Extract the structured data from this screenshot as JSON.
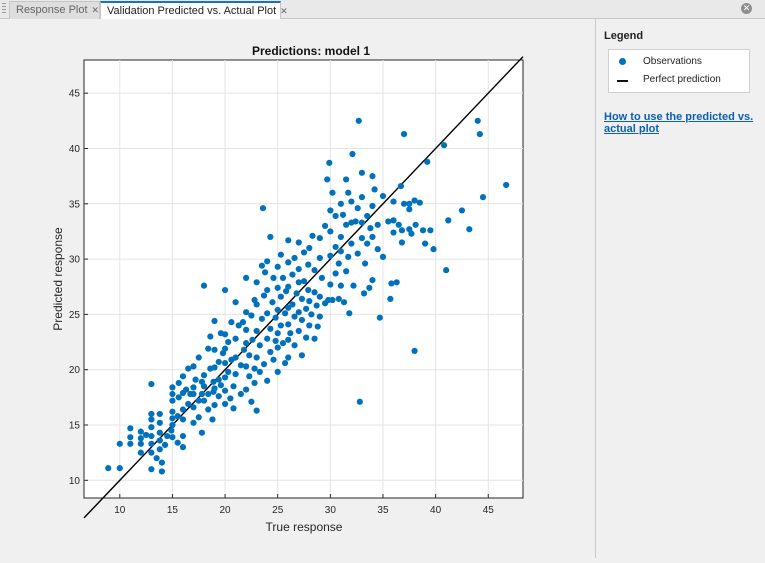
{
  "tabs": [
    {
      "label": "Response Plot",
      "active": false
    },
    {
      "label": "Validation Predicted vs. Actual Plot",
      "active": true
    }
  ],
  "legend": {
    "heading": "Legend",
    "items": [
      {
        "label": "Observations",
        "marker": "filled-circle",
        "color": "#0072bd"
      },
      {
        "label": "Perfect prediction",
        "marker": "line",
        "color": "#000000"
      }
    ],
    "help_link": "How to use the predicted vs. actual plot"
  },
  "icons": {
    "tab_close": "close-icon",
    "panel_close": "close-circle-icon",
    "grip": "drag-grip-icon"
  },
  "chart_data": {
    "type": "scatter",
    "title": "Predictions: model 1",
    "xlabel": "True response",
    "ylabel": "Predicted response",
    "xlim": [
      6.6,
      48.3
    ],
    "ylim": [
      8.4,
      48.0
    ],
    "xticks": [
      10,
      15,
      20,
      25,
      30,
      35,
      40,
      45
    ],
    "yticks": [
      10,
      15,
      20,
      25,
      30,
      35,
      40,
      45
    ],
    "grid": true,
    "marker_color": "#0072bd",
    "reference_line": {
      "name": "Perfect prediction",
      "x": [
        6.6,
        48.3
      ],
      "y": [
        6.6,
        48.3
      ]
    },
    "series": [
      {
        "name": "Observations",
        "points": [
          [
            8.9,
            11.1
          ],
          [
            10.0,
            11.1
          ],
          [
            10.0,
            13.3
          ],
          [
            11.0,
            13.3
          ],
          [
            11.0,
            13.9
          ],
          [
            11.0,
            14.7
          ],
          [
            12.0,
            12.5
          ],
          [
            12.0,
            13.3
          ],
          [
            12.0,
            14.4
          ],
          [
            12.0,
            13.8
          ],
          [
            12.5,
            14.1
          ],
          [
            13.0,
            11.0
          ],
          [
            13.0,
            12.5
          ],
          [
            13.0,
            13.3
          ],
          [
            13.0,
            14.0
          ],
          [
            13.0,
            14.8
          ],
          [
            13.0,
            15.5
          ],
          [
            13.0,
            16.0
          ],
          [
            13.0,
            18.7
          ],
          [
            13.5,
            12.0
          ],
          [
            13.8,
            12.8
          ],
          [
            13.8,
            13.6
          ],
          [
            13.8,
            14.3
          ],
          [
            13.8,
            15.2
          ],
          [
            13.8,
            16.0
          ],
          [
            14.0,
            10.8
          ],
          [
            14.0,
            11.6
          ],
          [
            14.3,
            13.2
          ],
          [
            14.5,
            14.0
          ],
          [
            14.9,
            14.5
          ],
          [
            15.0,
            13.9
          ],
          [
            15.0,
            15.0
          ],
          [
            15.0,
            15.6
          ],
          [
            15.0,
            16.2
          ],
          [
            15.0,
            17.2
          ],
          [
            15.0,
            17.8
          ],
          [
            15.0,
            18.4
          ],
          [
            15.5,
            13.4
          ],
          [
            15.5,
            15.8
          ],
          [
            15.6,
            18.8
          ],
          [
            15.6,
            17.5
          ],
          [
            16.0,
            13.0
          ],
          [
            16.0,
            14.0
          ],
          [
            16.0,
            15.5
          ],
          [
            16.0,
            16.4
          ],
          [
            16.0,
            17.9
          ],
          [
            16.0,
            19.4
          ],
          [
            16.3,
            18.2
          ],
          [
            16.5,
            16.9
          ],
          [
            16.5,
            20.1
          ],
          [
            16.7,
            17.8
          ],
          [
            17.0,
            15.2
          ],
          [
            17.0,
            16.6
          ],
          [
            17.0,
            17.8
          ],
          [
            17.0,
            18.4
          ],
          [
            17.0,
            20.3
          ],
          [
            17.2,
            19.1
          ],
          [
            17.5,
            15.7
          ],
          [
            17.5,
            17.2
          ],
          [
            17.5,
            21.1
          ],
          [
            17.8,
            14.3
          ],
          [
            17.8,
            17.8
          ],
          [
            17.8,
            18.9
          ],
          [
            18.0,
            17.2
          ],
          [
            18.0,
            18.5
          ],
          [
            18.0,
            19.5
          ],
          [
            18.0,
            27.6
          ],
          [
            18.4,
            16.4
          ],
          [
            18.4,
            17.8
          ],
          [
            18.4,
            21.9
          ],
          [
            18.6,
            20.1
          ],
          [
            18.6,
            23.0
          ],
          [
            18.8,
            15.5
          ],
          [
            18.9,
            18.0
          ],
          [
            18.9,
            18.9
          ],
          [
            19.0,
            16.8
          ],
          [
            19.0,
            18.3
          ],
          [
            19.0,
            20.2
          ],
          [
            19.0,
            21.8
          ],
          [
            19.0,
            24.4
          ],
          [
            19.4,
            17.6
          ],
          [
            19.4,
            19.1
          ],
          [
            19.4,
            20.7
          ],
          [
            19.6,
            18.6
          ],
          [
            19.6,
            23.3
          ],
          [
            19.8,
            21.5
          ],
          [
            20.0,
            16.9
          ],
          [
            20.0,
            18.1
          ],
          [
            20.0,
            19.3
          ],
          [
            20.0,
            20.6
          ],
          [
            20.0,
            21.9
          ],
          [
            20.0,
            23.2
          ],
          [
            20.0,
            27.2
          ],
          [
            20.3,
            19.8
          ],
          [
            20.3,
            22.5
          ],
          [
            20.5,
            17.4
          ],
          [
            20.6,
            20.9
          ],
          [
            20.6,
            24.3
          ],
          [
            20.8,
            16.5
          ],
          [
            20.8,
            18.5
          ],
          [
            21.0,
            19.6
          ],
          [
            21.0,
            21.1
          ],
          [
            21.0,
            22.8
          ],
          [
            21.0,
            26.1
          ],
          [
            21.3,
            24.0
          ],
          [
            21.5,
            17.8
          ],
          [
            21.5,
            20.4
          ],
          [
            21.7,
            24.3
          ],
          [
            21.8,
            21.8
          ],
          [
            22.0,
            18.2
          ],
          [
            22.0,
            20.3
          ],
          [
            22.0,
            22.4
          ],
          [
            22.0,
            23.6
          ],
          [
            22.0,
            25.2
          ],
          [
            22.0,
            28.3
          ],
          [
            22.3,
            19.4
          ],
          [
            22.3,
            21.3
          ],
          [
            22.5,
            17.1
          ],
          [
            22.5,
            24.9
          ],
          [
            22.6,
            22.7
          ],
          [
            22.8,
            18.8
          ],
          [
            22.8,
            20.1
          ],
          [
            22.8,
            26.3
          ],
          [
            23.0,
            16.3
          ],
          [
            23.0,
            21.1
          ],
          [
            23.0,
            23.5
          ],
          [
            23.0,
            25.9
          ],
          [
            23.0,
            27.9
          ],
          [
            23.3,
            19.8
          ],
          [
            23.3,
            22.2
          ],
          [
            23.5,
            24.6
          ],
          [
            23.5,
            29.4
          ],
          [
            23.6,
            34.6
          ],
          [
            23.7,
            20.5
          ],
          [
            23.7,
            26.7
          ],
          [
            23.8,
            28.8
          ],
          [
            24.0,
            19.0
          ],
          [
            24.0,
            22.8
          ],
          [
            24.0,
            25.1
          ],
          [
            24.0,
            27.2
          ],
          [
            24.0,
            29.8
          ],
          [
            24.3,
            21.6
          ],
          [
            24.3,
            23.7
          ],
          [
            24.3,
            32.0
          ],
          [
            24.5,
            26.1
          ],
          [
            24.6,
            20.9
          ],
          [
            24.6,
            28.3
          ],
          [
            24.8,
            22.6
          ],
          [
            24.8,
            24.7
          ],
          [
            25.0,
            19.8
          ],
          [
            25.0,
            22.0
          ],
          [
            25.0,
            23.3
          ],
          [
            25.0,
            25.4
          ],
          [
            25.0,
            27.4
          ],
          [
            25.0,
            29.3
          ],
          [
            25.3,
            24.0
          ],
          [
            25.3,
            26.6
          ],
          [
            25.3,
            30.4
          ],
          [
            25.5,
            22.4
          ],
          [
            25.5,
            28.3
          ],
          [
            25.7,
            20.6
          ],
          [
            25.7,
            25.1
          ],
          [
            25.8,
            27.1
          ],
          [
            26.0,
            21.1
          ],
          [
            26.0,
            22.7
          ],
          [
            26.0,
            24.1
          ],
          [
            26.0,
            25.6
          ],
          [
            26.0,
            27.5
          ],
          [
            26.0,
            29.7
          ],
          [
            26.0,
            31.7
          ],
          [
            26.2,
            23.3
          ],
          [
            26.4,
            25.9
          ],
          [
            26.4,
            28.6
          ],
          [
            26.6,
            22.2
          ],
          [
            26.6,
            24.8
          ],
          [
            26.6,
            30.1
          ],
          [
            26.8,
            26.9
          ],
          [
            27.0,
            23.5
          ],
          [
            27.0,
            25.2
          ],
          [
            27.0,
            27.9
          ],
          [
            27.0,
            29.1
          ],
          [
            27.0,
            31.5
          ],
          [
            27.3,
            21.3
          ],
          [
            27.3,
            24.5
          ],
          [
            27.3,
            26.4
          ],
          [
            27.5,
            28.0
          ],
          [
            27.5,
            30.6
          ],
          [
            27.7,
            22.9
          ],
          [
            27.7,
            25.5
          ],
          [
            27.9,
            27.2
          ],
          [
            27.9,
            29.5
          ],
          [
            28.0,
            24.0
          ],
          [
            28.0,
            26.2
          ],
          [
            28.0,
            31.0
          ],
          [
            28.2,
            25.0
          ],
          [
            28.3,
            32.1
          ],
          [
            28.5,
            22.8
          ],
          [
            28.5,
            27.0
          ],
          [
            28.5,
            29.0
          ],
          [
            28.7,
            25.8
          ],
          [
            28.8,
            23.9
          ],
          [
            29.0,
            24.8
          ],
          [
            29.0,
            26.6
          ],
          [
            29.0,
            30.1
          ],
          [
            29.0,
            31.9
          ],
          [
            29.2,
            28.3
          ],
          [
            29.5,
            26.0
          ],
          [
            29.5,
            33.0
          ],
          [
            29.7,
            37.2
          ],
          [
            29.8,
            26.3
          ],
          [
            29.9,
            38.7
          ],
          [
            30.0,
            27.7
          ],
          [
            30.0,
            30.3
          ],
          [
            30.0,
            32.5
          ],
          [
            30.0,
            34.4
          ],
          [
            30.2,
            36.0
          ],
          [
            30.2,
            26.3
          ],
          [
            30.5,
            28.7
          ],
          [
            30.5,
            31.1
          ],
          [
            30.5,
            33.9
          ],
          [
            30.8,
            26.4
          ],
          [
            30.8,
            29.6
          ],
          [
            31.0,
            27.6
          ],
          [
            31.0,
            30.7
          ],
          [
            31.0,
            32.0
          ],
          [
            31.0,
            35.0
          ],
          [
            31.2,
            34.0
          ],
          [
            31.3,
            26.1
          ],
          [
            31.5,
            28.9
          ],
          [
            31.5,
            33.1
          ],
          [
            31.5,
            37.2
          ],
          [
            31.7,
            30.2
          ],
          [
            31.7,
            36.0
          ],
          [
            31.8,
            25.1
          ],
          [
            32.0,
            31.4
          ],
          [
            32.0,
            33.3
          ],
          [
            32.0,
            35.2
          ],
          [
            32.1,
            39.5
          ],
          [
            32.2,
            27.6
          ],
          [
            32.4,
            33.4
          ],
          [
            32.6,
            30.5
          ],
          [
            32.6,
            34.6
          ],
          [
            32.7,
            42.5
          ],
          [
            32.8,
            17.1
          ],
          [
            33.0,
            31.9
          ],
          [
            33.0,
            33.3
          ],
          [
            33.0,
            35.6
          ],
          [
            33.0,
            37.8
          ],
          [
            33.2,
            26.9
          ],
          [
            33.3,
            29.6
          ],
          [
            33.5,
            31.4
          ],
          [
            33.5,
            33.9
          ],
          [
            33.7,
            27.4
          ],
          [
            33.8,
            32.8
          ],
          [
            34.0,
            28.1
          ],
          [
            34.0,
            32.0
          ],
          [
            34.0,
            34.8
          ],
          [
            34.0,
            37.5
          ],
          [
            34.2,
            36.3
          ],
          [
            34.5,
            30.9
          ],
          [
            34.5,
            33.1
          ],
          [
            34.7,
            24.7
          ],
          [
            35.0,
            30.2
          ],
          [
            35.0,
            35.7
          ],
          [
            35.5,
            33.4
          ],
          [
            35.7,
            26.4
          ],
          [
            35.8,
            27.8
          ],
          [
            36.0,
            33.5
          ],
          [
            36.0,
            32.4
          ],
          [
            36.0,
            35.2
          ],
          [
            36.3,
            27.9
          ],
          [
            36.5,
            33.1
          ],
          [
            36.7,
            36.6
          ],
          [
            36.8,
            31.5
          ],
          [
            36.8,
            32.6
          ],
          [
            37.0,
            35.0
          ],
          [
            37.0,
            41.3
          ],
          [
            37.5,
            32.7
          ],
          [
            37.5,
            34.5
          ],
          [
            37.5,
            35.0
          ],
          [
            37.7,
            32.3
          ],
          [
            38.0,
            35.3
          ],
          [
            38.0,
            21.7
          ],
          [
            38.1,
            33.1
          ],
          [
            38.5,
            35.1
          ],
          [
            38.8,
            32.6
          ],
          [
            39.0,
            31.4
          ],
          [
            39.2,
            38.8
          ],
          [
            39.5,
            32.6
          ],
          [
            39.8,
            30.9
          ],
          [
            40.8,
            40.3
          ],
          [
            41.0,
            29.0
          ],
          [
            41.2,
            33.5
          ],
          [
            42.5,
            34.4
          ],
          [
            43.2,
            32.7
          ],
          [
            44.0,
            42.5
          ],
          [
            44.2,
            41.3
          ],
          [
            44.5,
            35.6
          ],
          [
            46.7,
            36.7
          ]
        ]
      }
    ]
  }
}
